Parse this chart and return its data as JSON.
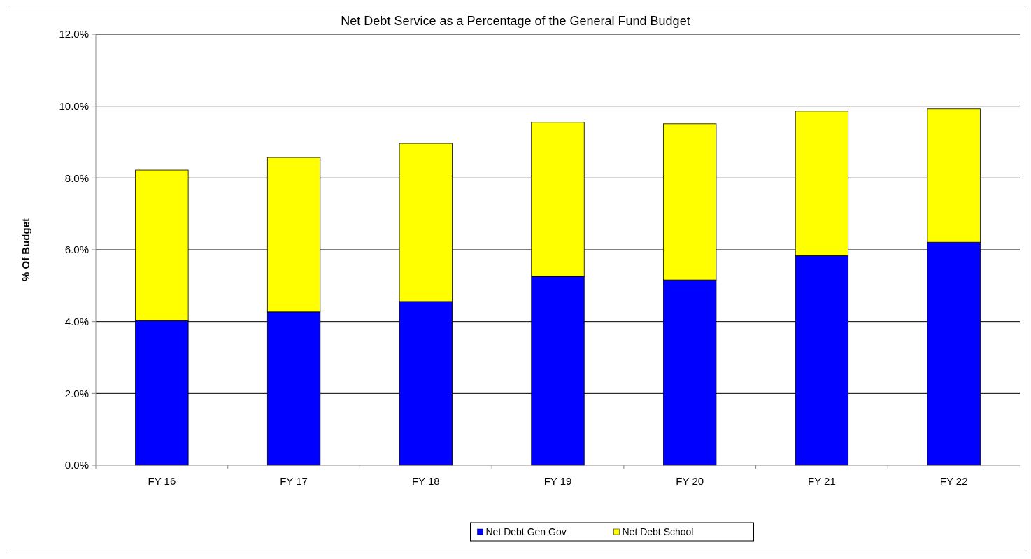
{
  "chart_data": {
    "type": "bar",
    "title": "Net Debt Service as a Percentage of the General Fund Budget",
    "ylabel": "% Of Budget",
    "categories": [
      "FY 16",
      "FY 17",
      "FY 18",
      "FY 19",
      "FY 20",
      "FY 21",
      "FY 22"
    ],
    "series": [
      {
        "name": "Net Debt Gen Gov",
        "color": "#0000ff",
        "values": [
          4.03,
          4.27,
          4.56,
          5.26,
          5.16,
          5.84,
          6.21
        ]
      },
      {
        "name": "Net Debt School",
        "color": "#ffff00",
        "values": [
          4.19,
          4.3,
          4.4,
          4.29,
          4.35,
          4.02,
          3.71
        ]
      }
    ],
    "stacked": true,
    "ylim": [
      0,
      12
    ],
    "yticks": [
      {
        "value": 0,
        "label": "0.0%"
      },
      {
        "value": 2,
        "label": "2.0%"
      },
      {
        "value": 4,
        "label": "4.0%"
      },
      {
        "value": 6,
        "label": "6.0%"
      },
      {
        "value": 8,
        "label": "8.0%"
      },
      {
        "value": 10,
        "label": "10.0%"
      },
      {
        "value": 12,
        "label": "12.0%"
      }
    ],
    "grid": "y",
    "legend": "bottom"
  }
}
